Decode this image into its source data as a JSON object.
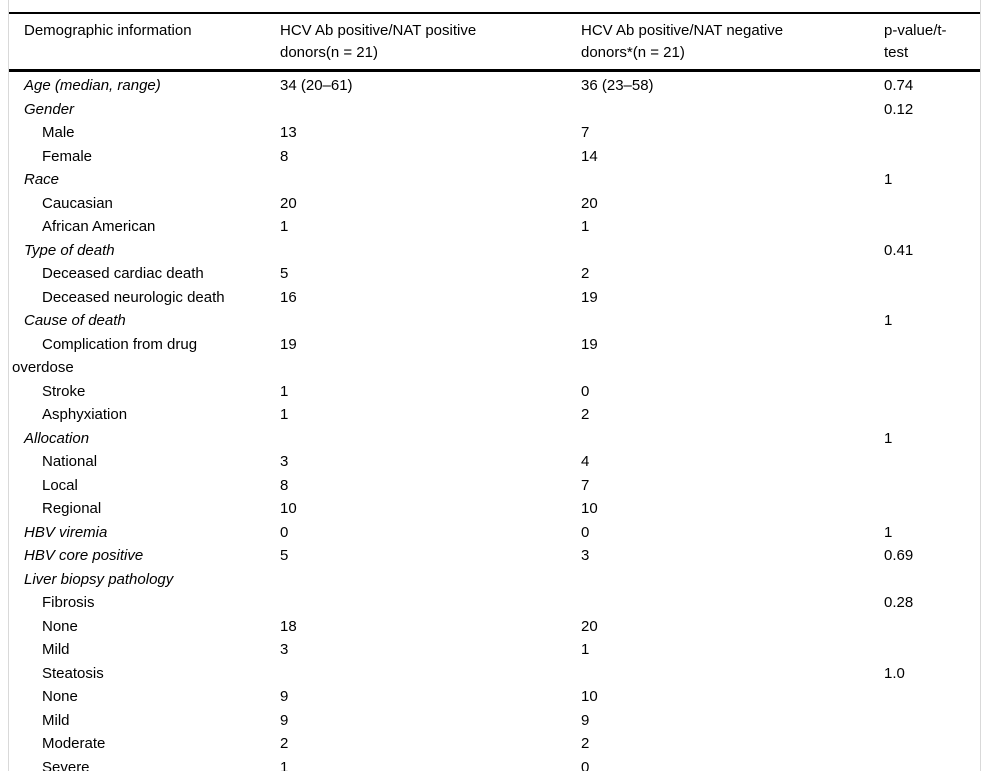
{
  "colors": {
    "rule": "#000000",
    "frame_border": "#d9d9d9",
    "text": "#000000",
    "background": "#ffffff"
  },
  "table": {
    "columns": [
      {
        "label": "Demographic information"
      },
      {
        "label": "HCV Ab positive/NAT positive\ndonors(n = 21)"
      },
      {
        "label": "HCV Ab positive/NAT negative\ndonors*(n = 21)"
      },
      {
        "label": "p-value/t-\ntest"
      }
    ],
    "rows": [
      {
        "label": "Age (median, range)",
        "level": "group",
        "nat_positive": "34 (20–61)",
        "nat_negative": "36 (23–58)",
        "p_value": "0.74"
      },
      {
        "label": "Gender",
        "level": "group",
        "nat_positive": "",
        "nat_negative": "",
        "p_value": "0.12"
      },
      {
        "label": "Male",
        "level": "item",
        "nat_positive": "13",
        "nat_negative": "7",
        "p_value": ""
      },
      {
        "label": "Female",
        "level": "item",
        "nat_positive": "8",
        "nat_negative": "14",
        "p_value": ""
      },
      {
        "label": "Race",
        "level": "group",
        "nat_positive": "",
        "nat_negative": "",
        "p_value": "1"
      },
      {
        "label": "Caucasian",
        "level": "item",
        "nat_positive": "20",
        "nat_negative": "20",
        "p_value": ""
      },
      {
        "label": "African American",
        "level": "item",
        "nat_positive": "1",
        "nat_negative": "1",
        "p_value": ""
      },
      {
        "label": "Type of death",
        "level": "group",
        "nat_positive": "",
        "nat_negative": "",
        "p_value": "0.41"
      },
      {
        "label": "Deceased cardiac death",
        "level": "item",
        "nat_positive": "5",
        "nat_negative": "2",
        "p_value": ""
      },
      {
        "label": "Deceased neurologic death",
        "level": "item",
        "nat_positive": "16",
        "nat_negative": "19",
        "p_value": ""
      },
      {
        "label": "Cause of death",
        "level": "group",
        "nat_positive": "",
        "nat_negative": "",
        "p_value": "1"
      },
      {
        "label": "Complication from drug\noverdose",
        "level": "item",
        "nat_positive": "19",
        "nat_negative": "19",
        "p_value": ""
      },
      {
        "label": "Stroke",
        "level": "item",
        "nat_positive": "1",
        "nat_negative": "0",
        "p_value": ""
      },
      {
        "label": "Asphyxiation",
        "level": "item",
        "nat_positive": "1",
        "nat_negative": "2",
        "p_value": ""
      },
      {
        "label": "Allocation",
        "level": "group",
        "nat_positive": "",
        "nat_negative": "",
        "p_value": "1"
      },
      {
        "label": "National",
        "level": "item",
        "nat_positive": "3",
        "nat_negative": "4",
        "p_value": ""
      },
      {
        "label": "Local",
        "level": "item",
        "nat_positive": "8",
        "nat_negative": "7",
        "p_value": ""
      },
      {
        "label": "Regional",
        "level": "item",
        "nat_positive": "10",
        "nat_negative": "10",
        "p_value": ""
      },
      {
        "label": "HBV viremia",
        "level": "group",
        "nat_positive": "0",
        "nat_negative": "0",
        "p_value": "1"
      },
      {
        "label": "HBV core positive",
        "level": "group",
        "nat_positive": "5",
        "nat_negative": "3",
        "p_value": "0.69"
      },
      {
        "label": "Liver biopsy pathology",
        "level": "group",
        "nat_positive": "",
        "nat_negative": "",
        "p_value": ""
      },
      {
        "label": "Fibrosis",
        "level": "item",
        "nat_positive": "",
        "nat_negative": "",
        "p_value": "0.28"
      },
      {
        "label": "None",
        "level": "item",
        "nat_positive": "18",
        "nat_negative": "20",
        "p_value": ""
      },
      {
        "label": "Mild",
        "level": "item",
        "nat_positive": "3",
        "nat_negative": "1",
        "p_value": ""
      },
      {
        "label": "Steatosis",
        "level": "item",
        "nat_positive": "",
        "nat_negative": "",
        "p_value": "1.0"
      },
      {
        "label": "None",
        "level": "item",
        "nat_positive": "9",
        "nat_negative": "10",
        "p_value": ""
      },
      {
        "label": "Mild",
        "level": "item",
        "nat_positive": "9",
        "nat_negative": "9",
        "p_value": ""
      },
      {
        "label": "Moderate",
        "level": "item",
        "nat_positive": "2",
        "nat_negative": "2",
        "p_value": ""
      },
      {
        "label": "Severe",
        "level": "item",
        "nat_positive": "1",
        "nat_negative": "0",
        "p_value": ""
      }
    ]
  }
}
